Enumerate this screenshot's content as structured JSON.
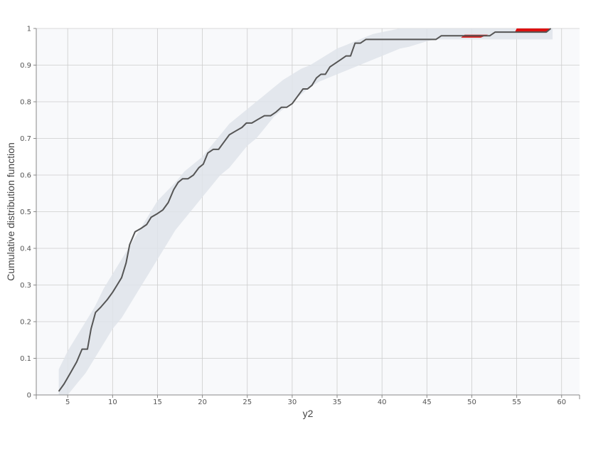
{
  "chart_data": {
    "type": "line",
    "title": "",
    "xlabel": "y2",
    "ylabel": "Cumulative distribution function",
    "xlim": [
      1.5,
      62
    ],
    "ylim": [
      0,
      1
    ],
    "x_ticks": [
      5,
      10,
      15,
      20,
      25,
      30,
      35,
      40,
      45,
      50,
      55,
      60
    ],
    "y_ticks": [
      0,
      0.1,
      0.2,
      0.3,
      0.4,
      0.5,
      0.6,
      0.7,
      0.8,
      0.9,
      1
    ],
    "y_tick_labels": [
      "0",
      "0.1",
      "0.2",
      "0.3",
      "0.4",
      "0.5",
      "0.6",
      "0.7",
      "0.8",
      "0.9",
      "1"
    ],
    "grid": true,
    "legend": "none",
    "colors": {
      "line": "#555555",
      "band": "#dfe4ea",
      "highlight": "#dd1111",
      "plot_bg": "#f8f9fb",
      "grid": "#cccccc"
    },
    "series": [
      {
        "values_xy": [
          [
            4.0,
            0.01
          ],
          [
            4.6,
            0.03
          ],
          [
            5.3,
            0.06
          ],
          [
            6.0,
            0.09
          ],
          [
            6.6,
            0.125
          ],
          [
            7.2,
            0.125
          ],
          [
            7.6,
            0.18
          ],
          [
            8.1,
            0.225
          ],
          [
            8.7,
            0.24
          ],
          [
            9.4,
            0.26
          ],
          [
            10.0,
            0.28
          ],
          [
            10.5,
            0.3
          ],
          [
            11.0,
            0.32
          ],
          [
            11.5,
            0.36
          ],
          [
            11.9,
            0.41
          ],
          [
            12.5,
            0.445
          ],
          [
            13.2,
            0.455
          ],
          [
            13.8,
            0.465
          ],
          [
            14.3,
            0.485
          ],
          [
            15.0,
            0.495
          ],
          [
            15.6,
            0.505
          ],
          [
            16.2,
            0.525
          ],
          [
            16.8,
            0.56
          ],
          [
            17.3,
            0.58
          ],
          [
            17.8,
            0.59
          ],
          [
            18.4,
            0.59
          ],
          [
            19.0,
            0.6
          ],
          [
            19.6,
            0.62
          ],
          [
            20.1,
            0.63
          ],
          [
            20.6,
            0.66
          ],
          [
            21.2,
            0.67
          ],
          [
            21.8,
            0.67
          ],
          [
            22.4,
            0.69
          ],
          [
            23.0,
            0.71
          ],
          [
            23.7,
            0.72
          ],
          [
            24.4,
            0.73
          ],
          [
            24.9,
            0.742
          ],
          [
            25.5,
            0.742
          ],
          [
            26.2,
            0.752
          ],
          [
            26.9,
            0.762
          ],
          [
            27.6,
            0.762
          ],
          [
            28.2,
            0.772
          ],
          [
            28.8,
            0.785
          ],
          [
            29.4,
            0.785
          ],
          [
            30.0,
            0.795
          ],
          [
            30.6,
            0.815
          ],
          [
            31.2,
            0.835
          ],
          [
            31.7,
            0.835
          ],
          [
            32.2,
            0.845
          ],
          [
            32.7,
            0.865
          ],
          [
            33.2,
            0.875
          ],
          [
            33.7,
            0.875
          ],
          [
            34.2,
            0.895
          ],
          [
            34.8,
            0.905
          ],
          [
            35.4,
            0.915
          ],
          [
            36.0,
            0.925
          ],
          [
            36.5,
            0.925
          ],
          [
            37.0,
            0.96
          ],
          [
            37.6,
            0.96
          ],
          [
            38.2,
            0.97
          ],
          [
            46.0,
            0.97
          ],
          [
            46.6,
            0.98
          ],
          [
            52.0,
            0.98
          ],
          [
            52.6,
            0.99
          ],
          [
            58.3,
            0.99
          ],
          [
            58.8,
            1.0
          ]
        ]
      }
    ],
    "band": {
      "upper": [
        [
          4.0,
          0.07
        ],
        [
          5.0,
          0.12
        ],
        [
          6.0,
          0.16
        ],
        [
          7.0,
          0.2
        ],
        [
          8.0,
          0.24
        ],
        [
          9.0,
          0.29
        ],
        [
          10.0,
          0.33
        ],
        [
          11.0,
          0.37
        ],
        [
          12.0,
          0.41
        ],
        [
          13.0,
          0.45
        ],
        [
          14.0,
          0.49
        ],
        [
          15.0,
          0.53
        ],
        [
          16.0,
          0.555
        ],
        [
          17.0,
          0.58
        ],
        [
          18.0,
          0.61
        ],
        [
          19.0,
          0.63
        ],
        [
          20.0,
          0.65
        ],
        [
          21.0,
          0.68
        ],
        [
          22.0,
          0.71
        ],
        [
          23.0,
          0.74
        ],
        [
          24.0,
          0.76
        ],
        [
          25.0,
          0.78
        ],
        [
          26.0,
          0.8
        ],
        [
          27.0,
          0.82
        ],
        [
          28.0,
          0.84
        ],
        [
          29.0,
          0.86
        ],
        [
          30.0,
          0.875
        ],
        [
          31.0,
          0.89
        ],
        [
          32.0,
          0.9
        ],
        [
          33.0,
          0.915
        ],
        [
          34.0,
          0.93
        ],
        [
          35.0,
          0.945
        ],
        [
          36.0,
          0.955
        ],
        [
          37.0,
          0.965
        ],
        [
          38.0,
          0.975
        ],
        [
          39.0,
          0.985
        ],
        [
          40.0,
          0.99
        ],
        [
          42.0,
          1.0
        ],
        [
          59.0,
          1.0
        ]
      ],
      "lower": [
        [
          4.0,
          0.0
        ],
        [
          5.0,
          0.0
        ],
        [
          6.0,
          0.03
        ],
        [
          7.0,
          0.06
        ],
        [
          8.0,
          0.1
        ],
        [
          9.0,
          0.14
        ],
        [
          10.0,
          0.18
        ],
        [
          11.0,
          0.21
        ],
        [
          12.0,
          0.25
        ],
        [
          13.0,
          0.29
        ],
        [
          14.0,
          0.33
        ],
        [
          15.0,
          0.37
        ],
        [
          16.0,
          0.41
        ],
        [
          17.0,
          0.45
        ],
        [
          18.0,
          0.48
        ],
        [
          19.0,
          0.51
        ],
        [
          20.0,
          0.54
        ],
        [
          21.0,
          0.57
        ],
        [
          22.0,
          0.6
        ],
        [
          23.0,
          0.62
        ],
        [
          24.0,
          0.65
        ],
        [
          25.0,
          0.68
        ],
        [
          26.0,
          0.7
        ],
        [
          27.0,
          0.73
        ],
        [
          28.0,
          0.76
        ],
        [
          29.0,
          0.78
        ],
        [
          30.0,
          0.8
        ],
        [
          31.0,
          0.82
        ],
        [
          32.0,
          0.84
        ],
        [
          33.0,
          0.855
        ],
        [
          34.0,
          0.865
        ],
        [
          35.0,
          0.875
        ],
        [
          36.0,
          0.885
        ],
        [
          37.0,
          0.895
        ],
        [
          38.0,
          0.905
        ],
        [
          39.0,
          0.915
        ],
        [
          40.0,
          0.925
        ],
        [
          41.0,
          0.935
        ],
        [
          42.0,
          0.945
        ],
        [
          43.0,
          0.95
        ],
        [
          45.0,
          0.965
        ],
        [
          46.0,
          0.97
        ],
        [
          59.0,
          0.97
        ]
      ]
    },
    "highlight_regions": [
      {
        "polygon": [
          [
            49.2,
            0.983
          ],
          [
            51.8,
            0.983
          ],
          [
            51.0,
            0.975
          ],
          [
            48.8,
            0.975
          ]
        ]
      },
      {
        "polygon": [
          [
            55.0,
            1.0
          ],
          [
            58.8,
            1.0
          ],
          [
            58.3,
            0.99
          ],
          [
            54.8,
            0.99
          ]
        ]
      }
    ]
  }
}
